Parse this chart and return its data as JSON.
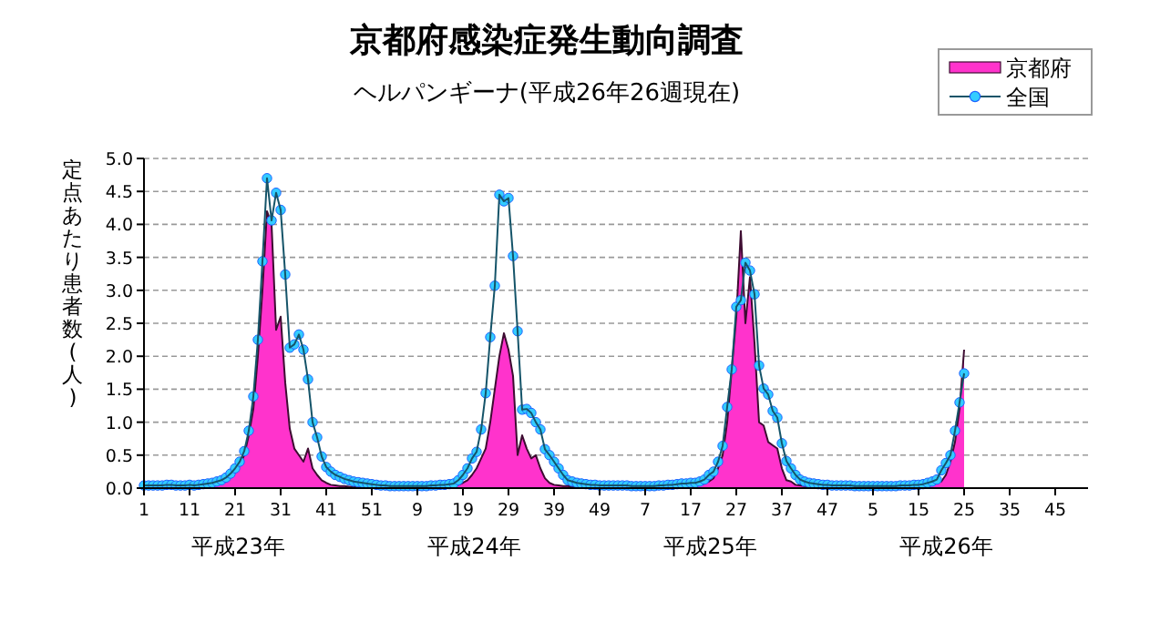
{
  "chart_data": {
    "type": "line",
    "title": "京都府感染症発生動向調査",
    "subtitle": "ヘルパンギーナ(平成26年26週現在)",
    "ylabel": "定点あたり患者数(人)",
    "categories": [
      "1",
      null,
      null,
      null,
      null,
      null,
      null,
      null,
      null,
      null,
      "11",
      null,
      null,
      null,
      null,
      null,
      null,
      null,
      null,
      null,
      "21",
      null,
      null,
      null,
      null,
      null,
      null,
      null,
      null,
      null,
      "31",
      null,
      null,
      null,
      null,
      null,
      null,
      null,
      null,
      null,
      "41",
      null,
      null,
      null,
      null,
      null,
      null,
      null,
      null,
      null,
      "51",
      null,
      null,
      null,
      null,
      null,
      null,
      null,
      null,
      null,
      "9",
      null,
      null,
      null,
      null,
      null,
      null,
      null,
      null,
      null,
      "19",
      null,
      null,
      null,
      null,
      null,
      null,
      null,
      null,
      null,
      "29",
      null,
      null,
      null,
      null,
      null,
      null,
      null,
      null,
      null,
      "39",
      null,
      null,
      null,
      null,
      null,
      null,
      null,
      null,
      null,
      "49",
      null,
      null,
      null,
      null,
      null,
      null,
      null,
      null,
      null,
      "7",
      null,
      null,
      null,
      null,
      null,
      null,
      null,
      null,
      null,
      "17",
      null,
      null,
      null,
      null,
      null,
      null,
      null,
      null,
      null,
      "27",
      null,
      null,
      null,
      null,
      null,
      null,
      null,
      null,
      null,
      "37",
      null,
      null,
      null,
      null,
      null,
      null,
      null,
      null,
      null,
      "47",
      null,
      null,
      null,
      null,
      null,
      null,
      null,
      null,
      null,
      "5",
      null,
      null,
      null,
      null,
      null,
      null,
      null,
      null,
      null,
      "15",
      null,
      null,
      null,
      null,
      null,
      null,
      null,
      null,
      null,
      "25",
      null,
      null,
      null,
      null,
      null,
      null,
      null,
      null,
      null,
      "35",
      null,
      null,
      null,
      null,
      null,
      null,
      null,
      null,
      null,
      "45",
      null,
      null,
      null,
      null,
      null,
      null,
      null
    ],
    "series": [
      {
        "name": "京都府",
        "type": "area",
        "color": "#ff33cc",
        "values": [
          0.02,
          0.02,
          0.01,
          0.02,
          0.02,
          0.03,
          0.02,
          0.02,
          0.02,
          0.03,
          0.02,
          0.03,
          0.03,
          0.04,
          0.05,
          0.05,
          0.06,
          0.08,
          0.12,
          0.18,
          0.25,
          0.35,
          0.5,
          0.8,
          1.2,
          2.0,
          3.0,
          4.2,
          4.0,
          2.4,
          2.6,
          1.6,
          0.9,
          0.6,
          0.5,
          0.4,
          0.6,
          0.3,
          0.2,
          0.12,
          0.08,
          0.05,
          0.04,
          0.03,
          0.03,
          0.02,
          0.02,
          0.02,
          0.02,
          0.01,
          0.02,
          0.02,
          0.02,
          0.01,
          0.02,
          0.02,
          0.01,
          0.02,
          0.02,
          0.02,
          0.02,
          0.02,
          0.03,
          0.02,
          0.03,
          0.03,
          0.04,
          0.04,
          0.05,
          0.05,
          0.08,
          0.12,
          0.2,
          0.3,
          0.45,
          0.6,
          1.0,
          1.5,
          2.0,
          2.35,
          2.1,
          1.7,
          0.5,
          0.8,
          0.6,
          0.45,
          0.5,
          0.3,
          0.15,
          0.08,
          0.05,
          0.04,
          0.03,
          0.03,
          0.02,
          0.02,
          0.02,
          0.02,
          0.01,
          0.02,
          0.02,
          0.01,
          0.02,
          0.02,
          0.02,
          0.02,
          0.01,
          0.02,
          0.02,
          0.02,
          0.01,
          0.02,
          0.02,
          0.02,
          0.03,
          0.02,
          0.03,
          0.03,
          0.04,
          0.04,
          0.04,
          0.05,
          0.05,
          0.07,
          0.1,
          0.15,
          0.3,
          0.5,
          1.0,
          1.8,
          2.6,
          3.9,
          2.5,
          3.2,
          2.2,
          1.0,
          0.95,
          0.7,
          0.65,
          0.6,
          0.3,
          0.12,
          0.1,
          0.05,
          0.04,
          0.03,
          0.03,
          0.02,
          0.02,
          0.02,
          0.01,
          0.02,
          0.02,
          0.01,
          0.02,
          0.02,
          0.01,
          0.02,
          0.01,
          0.01,
          0.02,
          0.01,
          0.02,
          0.01,
          0.02,
          0.02,
          0.01,
          0.02,
          0.02,
          0.02,
          0.03,
          0.03,
          0.03,
          0.05,
          0.08,
          0.1,
          0.2,
          0.4,
          0.7,
          1.2,
          2.1,
          null,
          null,
          null,
          null,
          null,
          null,
          null,
          null,
          null,
          null,
          null,
          null,
          null,
          null,
          null,
          null,
          null,
          null,
          null,
          null,
          null,
          null,
          null,
          null,
          null,
          null,
          null
        ]
      },
      {
        "name": "全国",
        "marker": "circle",
        "color": "#33ccff",
        "values": [
          0.04,
          0.04,
          0.04,
          0.04,
          0.04,
          0.05,
          0.05,
          0.04,
          0.04,
          0.04,
          0.05,
          0.04,
          0.05,
          0.06,
          0.07,
          0.08,
          0.1,
          0.12,
          0.16,
          0.22,
          0.3,
          0.4,
          0.56,
          0.87,
          1.39,
          2.25,
          3.44,
          4.7,
          4.06,
          4.48,
          4.22,
          3.24,
          2.13,
          2.18,
          2.33,
          2.1,
          1.65,
          1.0,
          0.77,
          0.48,
          0.32,
          0.25,
          0.2,
          0.17,
          0.14,
          0.12,
          0.1,
          0.09,
          0.08,
          0.07,
          0.06,
          0.05,
          0.04,
          0.04,
          0.03,
          0.03,
          0.03,
          0.03,
          0.03,
          0.03,
          0.03,
          0.03,
          0.03,
          0.04,
          0.04,
          0.05,
          0.05,
          0.06,
          0.07,
          0.12,
          0.2,
          0.3,
          0.45,
          0.55,
          0.89,
          1.44,
          2.29,
          3.07,
          4.45,
          4.35,
          4.4,
          3.52,
          2.38,
          1.19,
          1.2,
          1.14,
          1.0,
          0.89,
          0.59,
          0.5,
          0.4,
          0.3,
          0.2,
          0.12,
          0.1,
          0.08,
          0.07,
          0.06,
          0.05,
          0.05,
          0.04,
          0.04,
          0.04,
          0.04,
          0.04,
          0.04,
          0.04,
          0.03,
          0.03,
          0.03,
          0.03,
          0.03,
          0.03,
          0.04,
          0.04,
          0.05,
          0.05,
          0.06,
          0.07,
          0.07,
          0.08,
          0.08,
          0.1,
          0.13,
          0.2,
          0.25,
          0.4,
          0.64,
          1.23,
          1.8,
          2.75,
          2.85,
          3.42,
          3.3,
          2.94,
          1.86,
          1.51,
          1.42,
          1.17,
          1.07,
          0.68,
          0.41,
          0.3,
          0.2,
          0.13,
          0.1,
          0.08,
          0.07,
          0.06,
          0.05,
          0.05,
          0.04,
          0.04,
          0.04,
          0.04,
          0.04,
          0.03,
          0.03,
          0.03,
          0.03,
          0.03,
          0.03,
          0.03,
          0.03,
          0.03,
          0.03,
          0.04,
          0.04,
          0.04,
          0.05,
          0.05,
          0.06,
          0.08,
          0.1,
          0.13,
          0.27,
          0.38,
          0.5,
          0.87,
          1.3,
          1.74,
          null,
          null,
          null,
          null,
          null,
          null,
          null,
          null,
          null,
          null,
          null,
          null,
          null,
          null,
          null,
          null,
          null,
          null,
          null,
          null,
          null,
          null,
          null,
          null,
          null,
          null,
          null
        ]
      }
    ],
    "ylim": [
      0,
      5
    ],
    "yticks": [
      {
        "value": 0,
        "label": "0.0"
      },
      0.5,
      {
        "value": 1,
        "label": "1.0"
      },
      1.5,
      {
        "value": 2,
        "label": "2.0"
      },
      2.5,
      {
        "value": 3,
        "label": "3.0"
      },
      3.5,
      {
        "value": 4,
        "label": "4.0"
      },
      4.5,
      {
        "value": 5,
        "label": "5.0"
      }
    ],
    "grid": "y",
    "legend": "top right",
    "annotations": [
      "平成23年",
      "平成24年",
      "平成25年",
      "平成26年"
    ]
  }
}
